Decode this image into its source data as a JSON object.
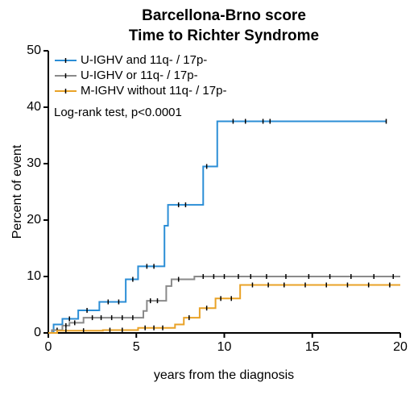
{
  "chart_data": {
    "type": "line",
    "step": true,
    "title": "Barcellona-Brno score",
    "subtitle": "Time to Richter Syndrome",
    "x_label": "years from the diagnosis",
    "y_label": "Percent of event",
    "annotation": "Log-rank test, p<0.0001",
    "xlim": [
      0,
      20
    ],
    "xticks": [
      0,
      5,
      10,
      15,
      20
    ],
    "ylim": [
      0,
      50
    ],
    "yticks": [
      0,
      10,
      20,
      30,
      40,
      50
    ],
    "legend": "upper left",
    "series": [
      {
        "name": "U-IGHV and 11q- / 17p-",
        "color": "#2b8ed6",
        "x": [
          0,
          0.3,
          0.8,
          1.7,
          2.9,
          4.4,
          5.1,
          6.6,
          6.8,
          8.8,
          9.6,
          19.2
        ],
        "values": [
          0,
          1.5,
          2.5,
          4,
          5.5,
          9.5,
          11.8,
          19,
          22.7,
          29.5,
          37.5,
          37.5
        ],
        "censored": [
          1.2,
          2.2,
          3.4,
          4.0,
          4.8,
          5.6,
          6.0,
          7.4,
          7.8,
          9.0,
          10.5,
          11.2,
          12.2,
          12.6,
          19.2
        ]
      },
      {
        "name": "U-IGHV or 11q- / 17p-",
        "color": "#8a8a8a",
        "x": [
          0,
          0.2,
          0.8,
          1.2,
          2.0,
          5.4,
          5.6,
          6.7,
          7.0,
          8.3,
          20
        ],
        "values": [
          0,
          0.5,
          1.3,
          1.8,
          2.7,
          3.9,
          5.7,
          8.3,
          9.5,
          10,
          10
        ],
        "censored": [
          0.5,
          1.0,
          1.5,
          2.5,
          3.0,
          3.6,
          4.2,
          4.8,
          5.8,
          6.2,
          7.4,
          8.8,
          9.4,
          10.0,
          10.8,
          11.5,
          12.4,
          13.5,
          14.8,
          16.0,
          17.2,
          18.5,
          19.6
        ]
      },
      {
        "name": "M-IGHV without 11q- / 17p-",
        "color": "#e9a227",
        "x": [
          0,
          0.5,
          3.1,
          5.1,
          7.2,
          7.7,
          8.6,
          9.5,
          10.9,
          20
        ],
        "values": [
          0,
          0.4,
          0.5,
          0.9,
          1.5,
          2.7,
          4.4,
          6.1,
          8.5,
          8.5
        ],
        "censored": [
          1.0,
          2.0,
          3.5,
          4.2,
          5.5,
          6.0,
          6.5,
          8.0,
          9.0,
          9.8,
          10.4,
          11.6,
          12.5,
          13.4,
          14.6,
          15.8,
          17.0,
          18.2,
          19.4
        ]
      }
    ]
  }
}
